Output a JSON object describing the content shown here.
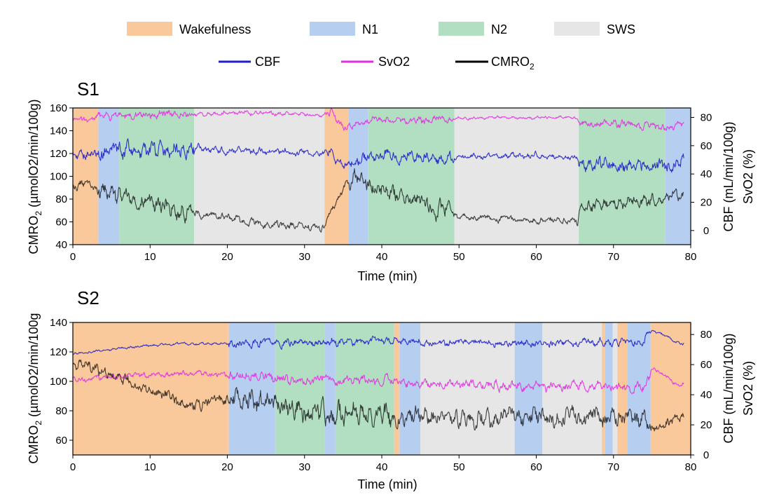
{
  "legend": {
    "stages": [
      {
        "key": "W",
        "label": "Wakefulness",
        "color": "#f9c89b"
      },
      {
        "key": "N1",
        "label": "N1",
        "color": "#b6cff1"
      },
      {
        "key": "N2",
        "label": "N2",
        "color": "#b2dfc2"
      },
      {
        "key": "SWS",
        "label": "SWS",
        "color": "#e6e6e6"
      }
    ],
    "lines": [
      {
        "key": "CBF",
        "label": "CBF",
        "color": "#1f1fc8"
      },
      {
        "key": "SvO2",
        "label": "SvO2",
        "color": "#e22ee2"
      },
      {
        "key": "CMRO2",
        "label": "CMRO",
        "sub": "2",
        "color": "#000000"
      }
    ]
  },
  "chart_data": [
    {
      "type": "line",
      "panel": "S1",
      "title": "S1",
      "xlabel": "Time (min)",
      "xlim": [
        0,
        80
      ],
      "xticks": [
        0,
        10,
        20,
        30,
        40,
        50,
        60,
        70,
        80
      ],
      "ylabel_left": {
        "pre": "CMRO",
        "sub": "2",
        "post": " (µmolO2/min/100g)"
      },
      "ylim_left": [
        40,
        160
      ],
      "yticks_left": [
        40,
        60,
        80,
        100,
        120,
        140,
        160
      ],
      "ylabel_right_1": "CBF (mL/min/100g)",
      "ylabel_right_2": "SvO2 (%)",
      "ylim_right": [
        -10,
        86.7
      ],
      "yticks_right": [
        0,
        20,
        40,
        60,
        80
      ],
      "stages": [
        {
          "start": 0,
          "end": 3.3,
          "stage": "W"
        },
        {
          "start": 3.3,
          "end": 6.0,
          "stage": "N1"
        },
        {
          "start": 6.0,
          "end": 15.7,
          "stage": "N2"
        },
        {
          "start": 15.7,
          "end": 32.6,
          "stage": "SWS"
        },
        {
          "start": 32.6,
          "end": 35.7,
          "stage": "W"
        },
        {
          "start": 35.7,
          "end": 38.2,
          "stage": "N1"
        },
        {
          "start": 38.2,
          "end": 49.4,
          "stage": "N2"
        },
        {
          "start": 49.4,
          "end": 65.5,
          "stage": "SWS"
        },
        {
          "start": 65.5,
          "end": 76.7,
          "stage": "N2"
        },
        {
          "start": 76.7,
          "end": 80,
          "stage": "N1"
        }
      ],
      "series": [
        {
          "name": "SvO2",
          "axis": "right",
          "amplitude": [
            {
              "start": 0,
              "end": 3.3,
              "amp": 2.0
            },
            {
              "start": 3.3,
              "end": 15.7,
              "amp": 3.0
            },
            {
              "start": 15.7,
              "end": 32.6,
              "amp": 1.6
            },
            {
              "start": 32.6,
              "end": 35.7,
              "amp": 3.0
            },
            {
              "start": 35.7,
              "end": 49.4,
              "amp": 2.6
            },
            {
              "start": 49.4,
              "end": 65.5,
              "amp": 1.0
            },
            {
              "start": 65.5,
              "end": 80,
              "amp": 3.0
            }
          ],
          "trend": [
            [
              0,
              77
            ],
            [
              3,
              80
            ],
            [
              6,
              82
            ],
            [
              10,
              82
            ],
            [
              16,
              82
            ],
            [
              20,
              83
            ],
            [
              25,
              83
            ],
            [
              30,
              82
            ],
            [
              32.5,
              81
            ],
            [
              33.5,
              84
            ],
            [
              34.5,
              76
            ],
            [
              35.5,
              73
            ],
            [
              38,
              77
            ],
            [
              43,
              78
            ],
            [
              49,
              79
            ],
            [
              55,
              80
            ],
            [
              60,
              80
            ],
            [
              65,
              80
            ],
            [
              65.8,
              76
            ],
            [
              70,
              75
            ],
            [
              75,
              74
            ],
            [
              77,
              72
            ],
            [
              78,
              75
            ],
            [
              79,
              77
            ]
          ]
        },
        {
          "name": "CBF",
          "axis": "right",
          "amplitude": [
            {
              "start": 0,
              "end": 3.3,
              "amp": 4.0
            },
            {
              "start": 3.3,
              "end": 15.7,
              "amp": 6.0
            },
            {
              "start": 15.7,
              "end": 32.6,
              "amp": 2.5
            },
            {
              "start": 32.6,
              "end": 35.7,
              "amp": 3.0
            },
            {
              "start": 35.7,
              "end": 49.4,
              "amp": 4.0
            },
            {
              "start": 49.4,
              "end": 65.5,
              "amp": 2.0
            },
            {
              "start": 65.5,
              "end": 80,
              "amp": 5.0
            }
          ],
          "trend": [
            [
              0,
              53
            ],
            [
              3,
              55
            ],
            [
              6,
              57
            ],
            [
              10,
              57
            ],
            [
              16,
              58
            ],
            [
              20,
              57
            ],
            [
              25,
              56
            ],
            [
              30,
              55
            ],
            [
              32.5,
              54
            ],
            [
              33.5,
              58
            ],
            [
              34,
              50
            ],
            [
              35,
              46
            ],
            [
              36,
              50
            ],
            [
              40,
              52
            ],
            [
              45,
              52
            ],
            [
              49,
              52
            ],
            [
              55,
              53
            ],
            [
              60,
              53
            ],
            [
              65,
              52
            ],
            [
              66,
              47
            ],
            [
              70,
              46
            ],
            [
              75,
              47
            ],
            [
              77,
              45
            ],
            [
              79,
              49
            ]
          ]
        },
        {
          "name": "CMRO2",
          "axis": "left",
          "amplitude": [
            {
              "start": 0,
              "end": 3.3,
              "amp": 4.0
            },
            {
              "start": 3.3,
              "end": 15.7,
              "amp": 8.0
            },
            {
              "start": 15.7,
              "end": 32.6,
              "amp": 3.5
            },
            {
              "start": 32.6,
              "end": 35.7,
              "amp": 3.0
            },
            {
              "start": 35.7,
              "end": 49.4,
              "amp": 8.0
            },
            {
              "start": 49.4,
              "end": 65.5,
              "amp": 3.0
            },
            {
              "start": 65.5,
              "end": 80,
              "amp": 5.5
            }
          ],
          "trend": [
            [
              0,
              90
            ],
            [
              2,
              93
            ],
            [
              3.3,
              88
            ],
            [
              6,
              82
            ],
            [
              10,
              76
            ],
            [
              15.7,
              66
            ],
            [
              16,
              68
            ],
            [
              20,
              63
            ],
            [
              25,
              59
            ],
            [
              30,
              56
            ],
            [
              32.5,
              54
            ],
            [
              33,
              66
            ],
            [
              34,
              76
            ],
            [
              35.5,
              95
            ],
            [
              36.5,
              98
            ],
            [
              40,
              90
            ],
            [
              45,
              77
            ],
            [
              49,
              67
            ],
            [
              50,
              65
            ],
            [
              55,
              63
            ],
            [
              60,
              61
            ],
            [
              65.4,
              60
            ],
            [
              65.6,
              72
            ],
            [
              70,
              76
            ],
            [
              75,
              79
            ],
            [
              77,
              83
            ],
            [
              79,
              81
            ]
          ]
        }
      ]
    },
    {
      "type": "line",
      "panel": "S2",
      "title": "S2",
      "xlabel": "Time (min)",
      "xlim": [
        0,
        80
      ],
      "xticks": [
        0,
        10,
        20,
        30,
        40,
        50,
        60,
        70,
        80
      ],
      "ylabel_left": {
        "pre": "CMRO",
        "sub": "2",
        "post": " (µmolO2/min/100g"
      },
      "ylim_left": [
        50,
        140
      ],
      "yticks_left": [
        60,
        80,
        100,
        120,
        140
      ],
      "ylabel_right_1": "CBF (mL/min/100g)",
      "ylabel_right_2": "SvO2 (%)",
      "ylim_right": [
        0,
        88
      ],
      "yticks_right": [
        0,
        20,
        40,
        60,
        80
      ],
      "stages": [
        {
          "start": 0,
          "end": 20.2,
          "stage": "W"
        },
        {
          "start": 20.2,
          "end": 26.2,
          "stage": "N1"
        },
        {
          "start": 26.2,
          "end": 32.6,
          "stage": "N2"
        },
        {
          "start": 32.6,
          "end": 34.0,
          "stage": "N1"
        },
        {
          "start": 34.0,
          "end": 41.6,
          "stage": "N2"
        },
        {
          "start": 41.6,
          "end": 42.3,
          "stage": "W"
        },
        {
          "start": 42.3,
          "end": 45.0,
          "stage": "N1"
        },
        {
          "start": 45.0,
          "end": 57.2,
          "stage": "SWS"
        },
        {
          "start": 57.2,
          "end": 60.8,
          "stage": "N1"
        },
        {
          "start": 60.8,
          "end": 68.5,
          "stage": "SWS"
        },
        {
          "start": 68.5,
          "end": 68.9,
          "stage": "W"
        },
        {
          "start": 68.9,
          "end": 69.9,
          "stage": "N1"
        },
        {
          "start": 69.9,
          "end": 70.5,
          "stage": "SWS"
        },
        {
          "start": 70.5,
          "end": 71.8,
          "stage": "W"
        },
        {
          "start": 71.8,
          "end": 74.8,
          "stage": "N1"
        },
        {
          "start": 74.8,
          "end": 80,
          "stage": "W"
        }
      ],
      "series": [
        {
          "name": "CBF",
          "axis": "right",
          "amplitude": [
            {
              "start": 0,
              "end": 20.2,
              "amp": 0.9
            },
            {
              "start": 20.2,
              "end": 41.6,
              "amp": 2.8
            },
            {
              "start": 41.6,
              "end": 74.8,
              "amp": 2.5
            },
            {
              "start": 74.8,
              "end": 80,
              "amp": 1.0
            }
          ],
          "trend": [
            [
              0,
              67
            ],
            [
              5,
              70
            ],
            [
              10,
              73
            ],
            [
              15,
              74
            ],
            [
              20,
              74
            ],
            [
              25,
              75
            ],
            [
              30,
              75
            ],
            [
              35,
              75
            ],
            [
              40,
              76
            ],
            [
              42,
              75
            ],
            [
              45,
              75
            ],
            [
              50,
              75
            ],
            [
              55,
              74
            ],
            [
              60,
              74
            ],
            [
              65,
              75
            ],
            [
              70,
              75
            ],
            [
              74,
              75
            ],
            [
              75,
              83
            ],
            [
              76,
              81
            ],
            [
              78,
              75
            ],
            [
              79,
              74
            ]
          ]
        },
        {
          "name": "SvO2",
          "axis": "right",
          "amplitude": [
            {
              "start": 0,
              "end": 20.2,
              "amp": 2.0
            },
            {
              "start": 20.2,
              "end": 41.6,
              "amp": 3.5
            },
            {
              "start": 41.6,
              "end": 74.8,
              "amp": 3.2
            },
            {
              "start": 74.8,
              "end": 80,
              "amp": 1.5
            }
          ],
          "trend": [
            [
              0,
              50
            ],
            [
              5,
              52
            ],
            [
              10,
              53
            ],
            [
              15,
              54
            ],
            [
              20,
              53
            ],
            [
              25,
              52
            ],
            [
              30,
              50
            ],
            [
              35,
              50
            ],
            [
              40,
              49
            ],
            [
              42,
              48
            ],
            [
              50,
              47
            ],
            [
              55,
              46
            ],
            [
              60,
              46
            ],
            [
              65,
              46
            ],
            [
              70,
              45
            ],
            [
              74,
              44
            ],
            [
              75,
              58
            ],
            [
              76,
              55
            ],
            [
              78,
              48
            ],
            [
              79,
              47
            ]
          ]
        },
        {
          "name": "CMRO2",
          "axis": "left",
          "amplitude": [
            {
              "start": 0,
              "end": 20.2,
              "amp": 4.0
            },
            {
              "start": 20.2,
              "end": 41.6,
              "amp": 8.0
            },
            {
              "start": 41.6,
              "end": 74.8,
              "amp": 6.5
            },
            {
              "start": 74.8,
              "end": 80,
              "amp": 3.5
            }
          ],
          "trend": [
            [
              0,
              113
            ],
            [
              3,
              110
            ],
            [
              6,
              103
            ],
            [
              10,
              94
            ],
            [
              15,
              84
            ],
            [
              20,
              88
            ],
            [
              25,
              84
            ],
            [
              30,
              80
            ],
            [
              35,
              77
            ],
            [
              40,
              77
            ],
            [
              42,
              76
            ],
            [
              45,
              76
            ],
            [
              50,
              75
            ],
            [
              55,
              75
            ],
            [
              60,
              75
            ],
            [
              65,
              75
            ],
            [
              70,
              75
            ],
            [
              74,
              74
            ],
            [
              75,
              66
            ],
            [
              76,
              70
            ],
            [
              78,
              75
            ],
            [
              79,
              76
            ]
          ]
        }
      ]
    }
  ]
}
